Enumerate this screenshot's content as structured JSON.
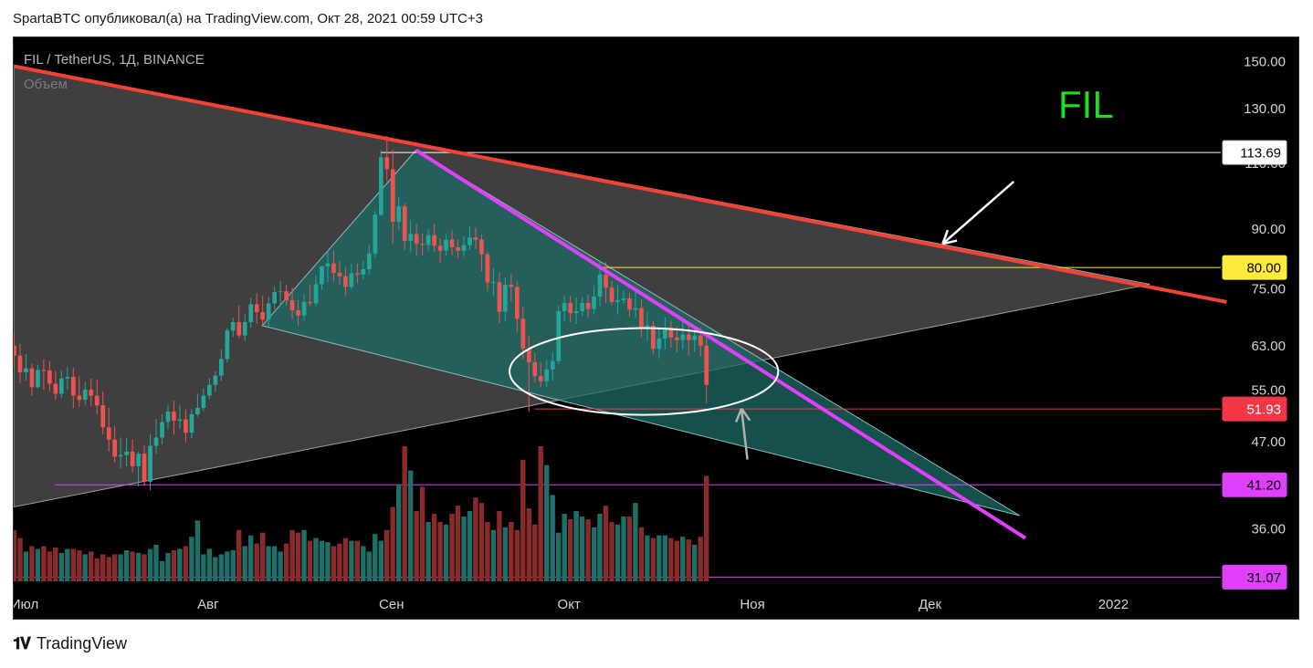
{
  "header": {
    "published_line": "SpartaBTC опубликовал(а) на TradingView.com, Окт 28, 2021 00:59 UTC+3"
  },
  "footer": {
    "brand": "TradingView",
    "logo_icon": "tradingview-logo-icon"
  },
  "colors": {
    "background": "#000000",
    "up_candle": "#26a69a",
    "down_candle": "#ef5350",
    "resistance_line": "#f44336",
    "downtrend_line": "#e040fb",
    "fil_label": "#22dd22",
    "triangle_fill": "#4a4a4a",
    "wedge_fill": "#1d6b66"
  },
  "chart_data": {
    "type": "candlestick",
    "title": "FIL / TetherUS, 1Д, BINANCE",
    "subtitle": "Объем",
    "annotation_label": "FIL",
    "y_axis": {
      "scale": "log",
      "range": [
        30,
        158
      ],
      "ticks": [
        "150.00",
        "130.00",
        "110.00",
        "90.00",
        "75.00",
        "63.00",
        "55.00",
        "47.00",
        "36.00"
      ]
    },
    "x_axis": {
      "ticks": [
        {
          "label": "Июл",
          "day": 0
        },
        {
          "label": "Авг",
          "day": 31
        },
        {
          "label": "Сен",
          "day": 62
        },
        {
          "label": "Окт",
          "day": 92
        },
        {
          "label": "Ноя",
          "day": 123
        },
        {
          "label": "Дек",
          "day": 153
        },
        {
          "label": "2022",
          "day": 184
        }
      ],
      "day_range": [
        0,
        204
      ]
    },
    "price_levels": [
      {
        "label": "113.69",
        "value": 113.69,
        "color": "#ffffff",
        "text_color": "#000000",
        "line_from_day": 62
      },
      {
        "label": "80.00",
        "value": 80.0,
        "color": "#ffeb3b",
        "text_color": "#000000",
        "line_from_day": 99
      },
      {
        "label": "51.93",
        "value": 51.93,
        "color": "#f23645",
        "text_color": "#ffffff",
        "line_from_day": 88
      },
      {
        "label": "41.20",
        "value": 41.2,
        "color": "#e040fb",
        "text_color": "#000000",
        "line_from_day": 7
      },
      {
        "label": "31.07",
        "value": 31.07,
        "color": "#e040fb",
        "text_color": "#000000",
        "line_from_day": 0
      }
    ],
    "drawings": {
      "resistance_line": [
        [
          0,
          148
        ],
        [
          205,
          72
        ]
      ],
      "triangle_upper": [
        [
          0,
          148
        ],
        [
          192,
          76
        ]
      ],
      "triangle_lower": [
        [
          0,
          38.5
        ],
        [
          192,
          76
        ]
      ],
      "downtrend_line": [
        [
          68,
          114.5
        ],
        [
          171,
          35
        ]
      ],
      "wedge": [
        [
          68,
          114.5
        ],
        [
          42,
          67
        ],
        [
          170,
          37.5
        ]
      ],
      "ellipse": {
        "center_day": 106.5,
        "center_value": 58.2,
        "rx_days": 22.7,
        "value_top": 66.5,
        "value_bottom": 51.0
      },
      "white_arrow": {
        "from": [
          169,
          104
        ],
        "to": [
          157,
          86
        ]
      },
      "gray_arrow": {
        "from": [
          124,
          44.5
        ],
        "to": [
          123,
          52
        ]
      }
    },
    "ohlc_series": {
      "start_day": 0,
      "open": [
        63.0,
        61.1,
        58.1,
        58.8,
        55.5,
        58.5,
        58.4,
        56.1,
        54.4,
        57.0,
        57.3,
        54.1,
        53.4,
        55.1,
        54.1,
        52.5,
        49.1,
        47.3,
        44.9,
        45.1,
        45.6,
        43.6,
        45.3,
        41.6,
        46.4,
        47.6,
        49.9,
        51.5,
        50.1,
        50.3,
        48.3,
        51.1,
        52.1,
        54.1,
        55.9,
        57.5,
        60.5,
        66.0,
        67.7,
        65.0,
        67.7,
        71.5,
        69.8,
        68.2,
        71.7,
        74.2,
        74.4,
        72.4,
        70.2,
        69.1,
        72.0,
        71.7,
        76.0,
        80.3,
        81.0,
        78.7,
        77.9,
        75.4,
        78.6,
        78.3,
        79.6,
        83.5,
        94.0,
        112.0,
        108.0,
        92.0,
        96.5,
        86.8,
        88.6,
        86.0,
        85.7,
        88.3,
        85.5,
        84.2,
        87.1,
        85.1,
        84.2,
        85.7,
        87.7,
        87.1,
        83.3,
        76.4,
        76.5,
        69.9,
        75.9,
        75.4,
        68.4,
        62.4,
        59.9,
        57.4,
        56.5,
        58.6,
        60.1,
        70.0,
        71.8,
        69.6,
        70.0,
        71.8,
        70.5,
        73.2,
        78.3,
        75.2,
        72.0,
        72.4,
        72.8,
        70.3,
        70.7,
        66.6,
        67.0,
        62.4,
        64.4,
        66.5,
        64.6,
        64.1,
        65.2,
        64.1,
        65.0,
        63.0
      ],
      "high": [
        65.7,
        63.4,
        61.4,
        59.6,
        59.4,
        60.4,
        60.1,
        58.3,
        58.4,
        59.1,
        58.9,
        57.4,
        56.4,
        57.0,
        56.8,
        54.8,
        52.1,
        49.3,
        47.6,
        47.5,
        47.3,
        45.6,
        46.5,
        48.1,
        50.4,
        51.1,
        52.6,
        53.3,
        52.6,
        51.9,
        51.9,
        54.4,
        55.3,
        57.0,
        58.3,
        62.3,
        66.5,
        68.6,
        71.2,
        69.4,
        72.9,
        74.0,
        73.4,
        73.2,
        75.5,
        76.8,
        75.9,
        75.2,
        72.4,
        73.7,
        76.0,
        78.1,
        80.3,
        84.2,
        84.2,
        81.6,
        80.1,
        80.9,
        81.0,
        81.6,
        85.7,
        95.1,
        114.5,
        119.6,
        114.7,
        99.2,
        97.3,
        92.4,
        91.5,
        88.8,
        90.0,
        91.5,
        87.5,
        88.5,
        89.6,
        87.2,
        88.0,
        90.7,
        90.4,
        88.5,
        84.0,
        79.9,
        78.9,
        77.5,
        78.6,
        76.8,
        71.0,
        65.0,
        61.7,
        59.9,
        60.3,
        61.8,
        71.2,
        73.4,
        73.4,
        73.1,
        73.1,
        73.6,
        75.7,
        81.6,
        81.3,
        76.8,
        75.8,
        74.6,
        74.0,
        74.3,
        72.5,
        69.9,
        68.0,
        66.3,
        68.8,
        68.0,
        66.9,
        68.0,
        67.1,
        67.0,
        66.5,
        64.5
      ],
      "low": [
        58.8,
        56.2,
        56.6,
        54.1,
        55.3,
        55.0,
        54.8,
        53.4,
        53.7,
        55.1,
        52.1,
        52.3,
        52.6,
        52.4,
        51.1,
        48.1,
        45.6,
        44.1,
        43.3,
        43.6,
        42.8,
        41.0,
        41.1,
        40.5,
        45.3,
        46.6,
        48.8,
        48.0,
        48.9,
        46.9,
        47.5,
        50.7,
        51.6,
        53.5,
        54.7,
        56.6,
        59.9,
        64.7,
        64.4,
        63.9,
        66.6,
        67.4,
        67.1,
        66.9,
        70.4,
        71.2,
        71.2,
        68.3,
        67.0,
        68.0,
        71.1,
        71.1,
        74.8,
        76.5,
        76.6,
        76.0,
        73.5,
        74.8,
        76.2,
        77.2,
        78.3,
        82.4,
        93.6,
        104.0,
        86.0,
        89.8,
        84.4,
        83.8,
        82.8,
        83.0,
        84.1,
        83.9,
        81.2,
        82.9,
        83.1,
        82.3,
        82.8,
        84.5,
        84.7,
        79.1,
        74.4,
        73.3,
        67.5,
        67.8,
        72.1,
        65.7,
        60.5,
        51.5,
        56.3,
        55.5,
        55.5,
        56.6,
        59.5,
        67.8,
        67.7,
        67.4,
        69.0,
        68.7,
        69.3,
        71.1,
        71.7,
        71.3,
        69.3,
        71.6,
        68.8,
        68.5,
        64.6,
        64.0,
        61.5,
        60.6,
        62.3,
        62.6,
        61.8,
        62.3,
        61.1,
        61.8,
        60.9,
        52.9
      ],
      "close": [
        61.1,
        58.1,
        58.8,
        55.5,
        58.5,
        58.4,
        56.1,
        54.4,
        57.0,
        57.3,
        54.1,
        53.4,
        55.1,
        54.1,
        52.5,
        49.1,
        47.3,
        44.9,
        45.1,
        45.6,
        43.6,
        45.3,
        41.6,
        46.4,
        47.6,
        49.9,
        51.5,
        50.1,
        50.3,
        48.3,
        51.1,
        52.1,
        54.1,
        55.9,
        57.5,
        60.5,
        66.0,
        67.7,
        65.0,
        67.7,
        71.5,
        69.8,
        68.2,
        71.7,
        74.2,
        74.4,
        72.4,
        70.2,
        69.1,
        72.0,
        71.7,
        76.0,
        80.3,
        81.0,
        78.7,
        77.9,
        75.4,
        78.6,
        78.3,
        79.6,
        83.5,
        94.0,
        112.0,
        108.0,
        92.0,
        96.5,
        86.8,
        88.6,
        86.0,
        85.7,
        88.3,
        85.5,
        84.2,
        87.1,
        85.1,
        84.2,
        85.7,
        87.7,
        87.1,
        83.3,
        76.4,
        76.5,
        69.9,
        75.9,
        75.4,
        68.4,
        62.4,
        59.9,
        57.4,
        56.5,
        58.6,
        60.1,
        70.0,
        71.8,
        69.6,
        70.0,
        71.8,
        70.5,
        73.2,
        78.3,
        75.2,
        72.0,
        72.4,
        72.8,
        70.3,
        70.7,
        66.6,
        67.0,
        62.4,
        64.4,
        66.5,
        64.6,
        64.1,
        65.2,
        64.1,
        65.0,
        63.0,
        55.9
      ],
      "volume": [
        0.38,
        0.32,
        0.22,
        0.26,
        0.24,
        0.26,
        0.22,
        0.25,
        0.21,
        0.24,
        0.24,
        0.23,
        0.2,
        0.22,
        0.17,
        0.2,
        0.18,
        0.2,
        0.2,
        0.23,
        0.22,
        0.21,
        0.2,
        0.24,
        0.27,
        0.15,
        0.21,
        0.23,
        0.24,
        0.26,
        0.33,
        0.45,
        0.2,
        0.24,
        0.18,
        0.2,
        0.22,
        0.23,
        0.38,
        0.26,
        0.34,
        0.28,
        0.36,
        0.26,
        0.26,
        0.22,
        0.28,
        0.38,
        0.36,
        0.38,
        0.3,
        0.32,
        0.3,
        0.29,
        0.26,
        0.28,
        0.32,
        0.3,
        0.3,
        0.26,
        0.22,
        0.35,
        0.3,
        0.38,
        0.55,
        0.72,
        1.0,
        0.82,
        0.52,
        0.7,
        0.44,
        0.5,
        0.44,
        0.42,
        0.5,
        0.56,
        0.48,
        0.52,
        0.62,
        0.58,
        0.44,
        0.38,
        0.52,
        0.4,
        0.44,
        0.38,
        0.9,
        0.54,
        0.42,
        1.0,
        0.86,
        0.64,
        0.36,
        0.5,
        0.46,
        0.52,
        0.48,
        0.46,
        0.4,
        0.5,
        0.56,
        0.44,
        0.42,
        0.48,
        0.48,
        0.58,
        0.4,
        0.34,
        0.32,
        0.34,
        0.34,
        0.32,
        0.3,
        0.33,
        0.31,
        0.27,
        0.33,
        0.78
      ]
    }
  }
}
